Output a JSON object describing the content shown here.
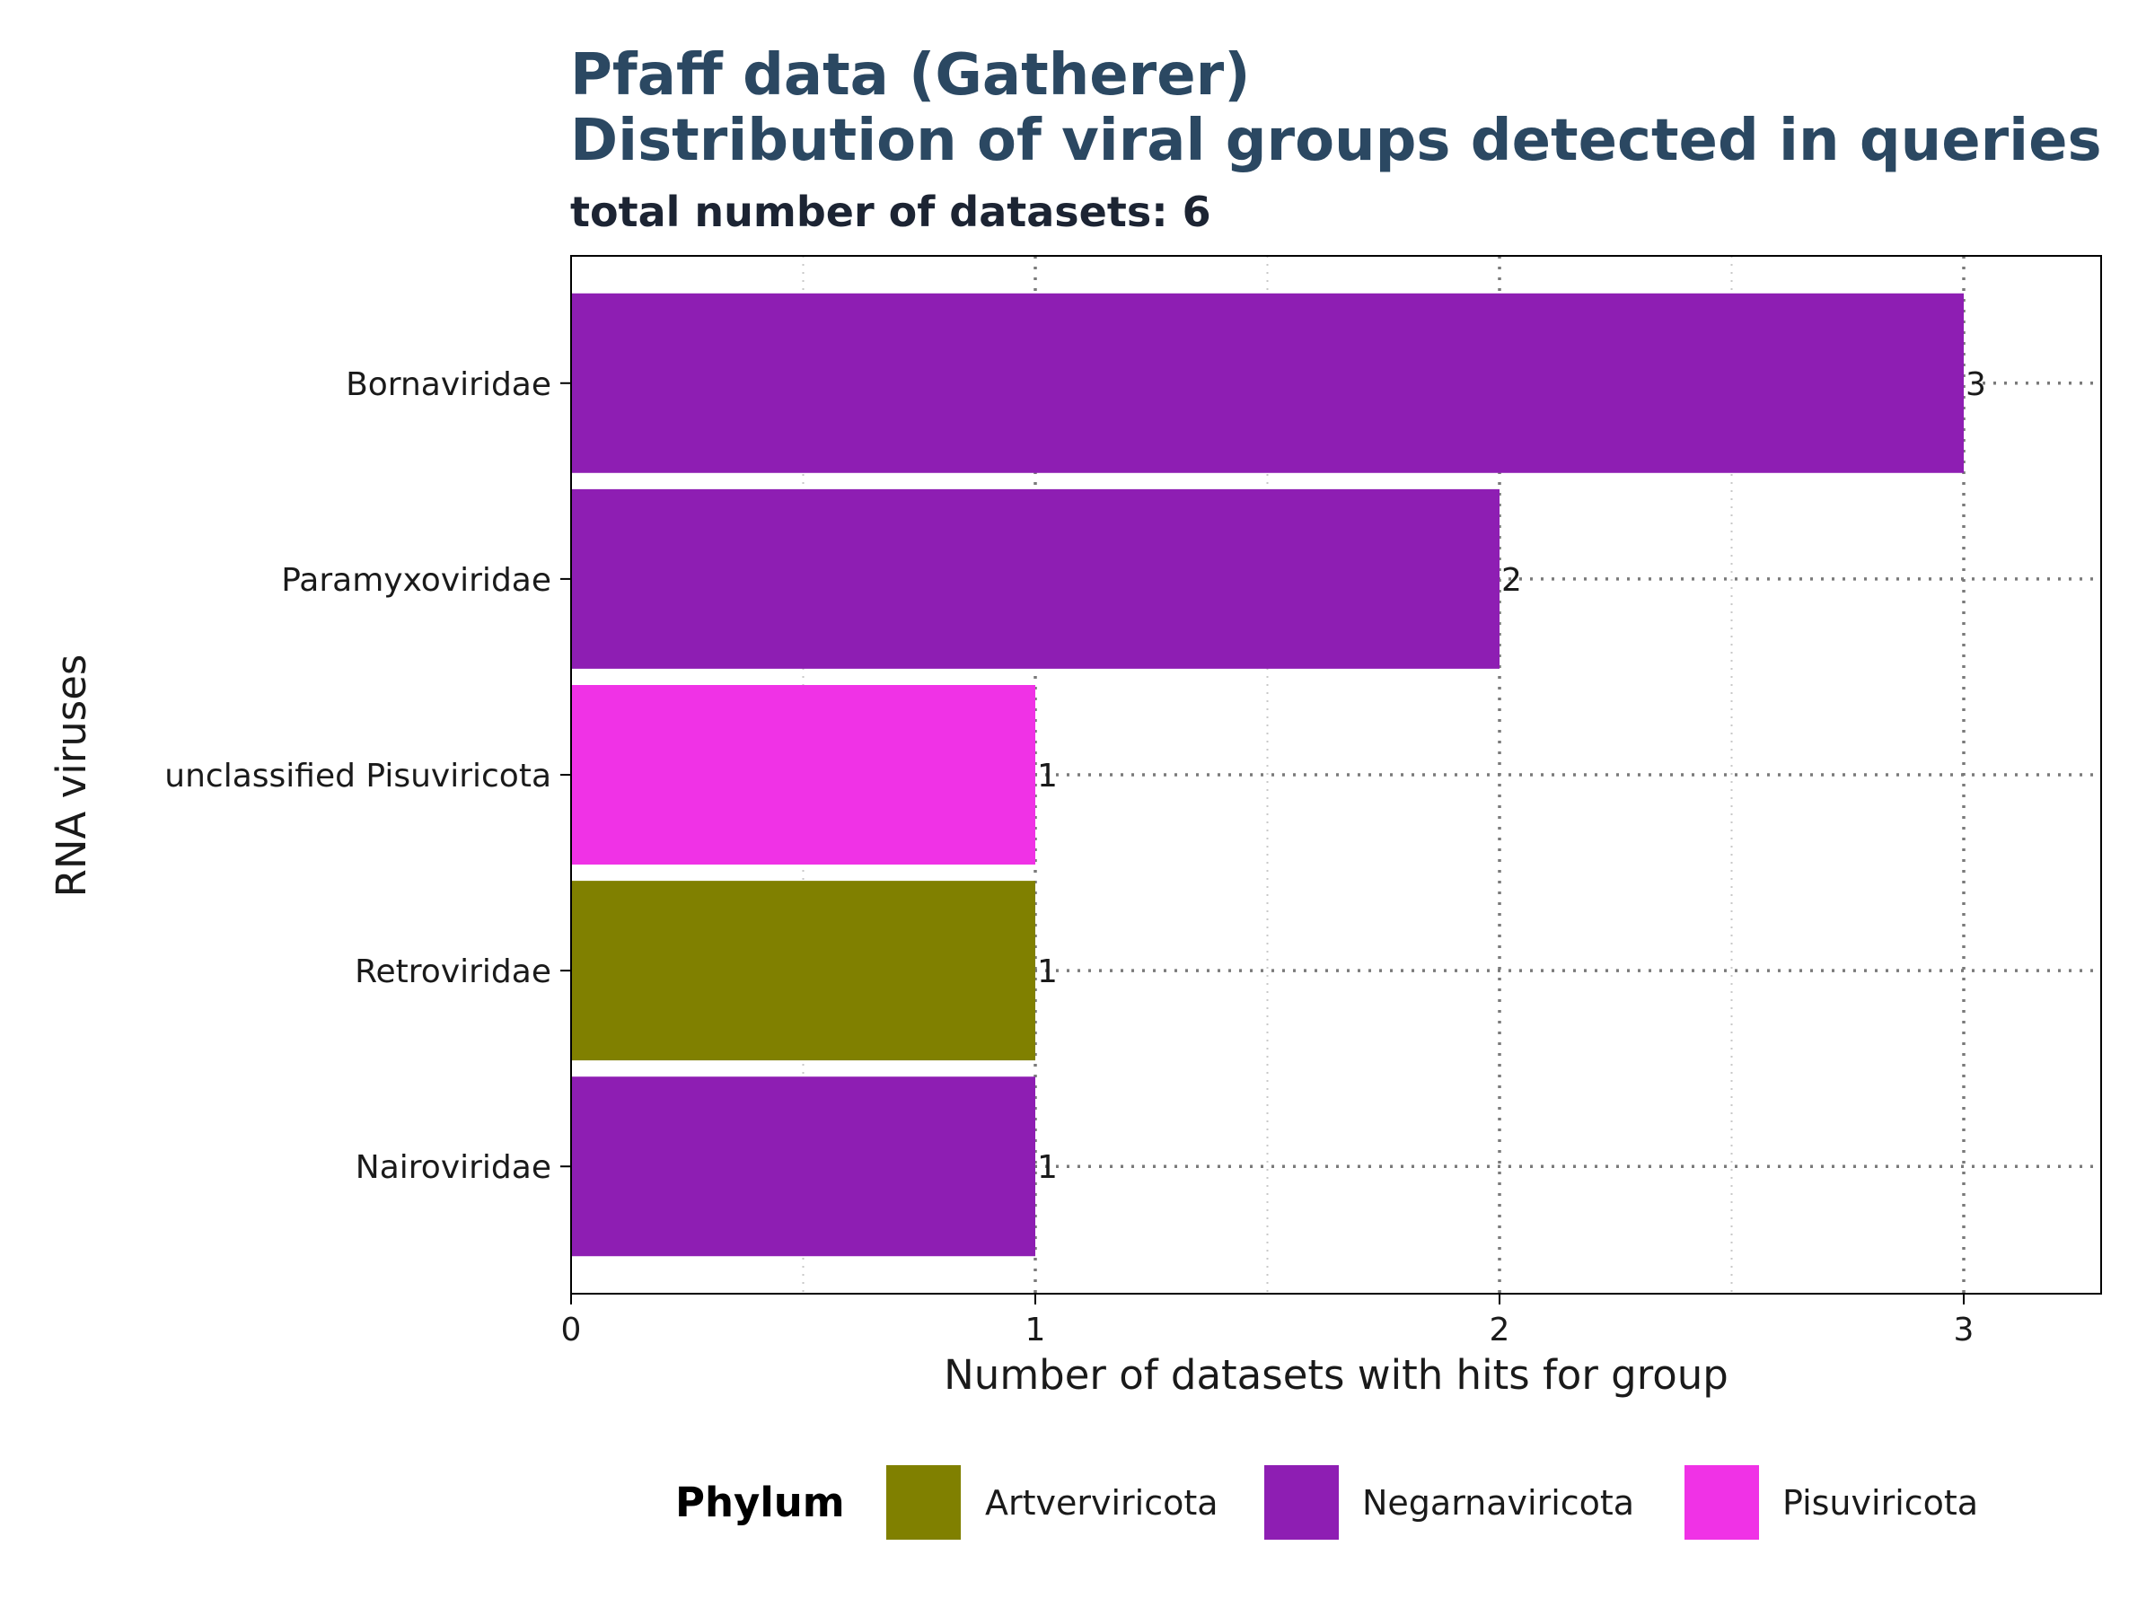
{
  "chart_data": {
    "type": "bar",
    "orientation": "horizontal",
    "title": "Pfaff data (Gatherer)",
    "title_line2": "Distribution of viral groups detected in queries",
    "subtitle": "total number of datasets: 6",
    "xlabel": "Number of datasets with hits for group",
    "ylabel": "RNA viruses",
    "xlim": [
      0,
      3.3
    ],
    "x_ticks": [
      0,
      1,
      2,
      3
    ],
    "grid": true,
    "legend_position": "bottom",
    "categories": [
      "Bornaviridae",
      "Paramyxoviridae",
      "unclassified Pisuviricota",
      "Retroviridae",
      "Nairoviridae"
    ],
    "values": [
      3,
      2,
      1,
      1,
      1
    ],
    "data_labels": [
      "3",
      "2",
      "1",
      "1",
      "1"
    ],
    "bar_phylum": [
      "Negarnaviricota",
      "Negarnaviricota",
      "Pisuviricota",
      "Artverviricota",
      "Negarnaviricota"
    ],
    "legend": {
      "title": "Phylum",
      "entries": [
        {
          "label": "Artverviricota",
          "color": "#808000"
        },
        {
          "label": "Negarnaviricota",
          "color": "#8e1eb3"
        },
        {
          "label": "Pisuviricota",
          "color": "#f032e6"
        }
      ]
    }
  }
}
